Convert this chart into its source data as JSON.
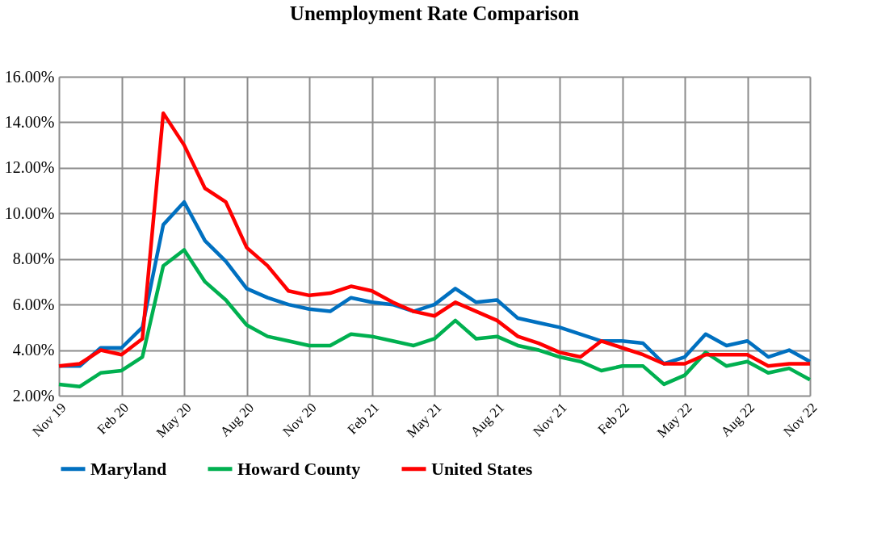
{
  "chart_data": {
    "type": "line",
    "title": "Unemployment Rate Comparison",
    "categories": [
      "Nov 19",
      null,
      null,
      "Feb 20",
      null,
      null,
      "May 20",
      null,
      null,
      "Aug 20",
      null,
      null,
      "Nov 20",
      null,
      null,
      "Feb 21",
      null,
      null,
      "May 21",
      null,
      null,
      "Aug 21",
      null,
      null,
      "Nov 21",
      null,
      null,
      "Feb 22",
      null,
      null,
      "May 22",
      null,
      null,
      "Aug 22",
      null,
      null,
      "Nov 22"
    ],
    "series": [
      {
        "name": "Maryland",
        "color": "#0070c0",
        "values": [
          3.3,
          3.3,
          4.1,
          4.1,
          5.0,
          9.5,
          10.5,
          8.8,
          7.9,
          6.7,
          6.3,
          6.0,
          5.8,
          5.7,
          6.3,
          6.1,
          6.0,
          5.7,
          6.0,
          6.7,
          6.1,
          6.2,
          5.4,
          5.2,
          5.0,
          4.7,
          4.4,
          4.4,
          4.3,
          3.4,
          3.7,
          4.7,
          4.2,
          4.4,
          3.7,
          4.0,
          3.5
        ]
      },
      {
        "name": "Howard County",
        "color": "#00b050",
        "values": [
          2.5,
          2.4,
          3.0,
          3.1,
          3.7,
          7.7,
          8.4,
          7.0,
          6.2,
          5.1,
          4.6,
          4.4,
          4.2,
          4.2,
          4.7,
          4.6,
          4.4,
          4.2,
          4.5,
          5.3,
          4.5,
          4.6,
          4.2,
          4.0,
          3.7,
          3.5,
          3.1,
          3.3,
          3.3,
          2.5,
          2.9,
          3.9,
          3.3,
          3.5,
          3.0,
          3.2,
          2.7
        ]
      },
      {
        "name": "United States",
        "color": "#ff0000",
        "values": [
          3.3,
          3.4,
          4.0,
          3.8,
          4.5,
          14.4,
          13.0,
          11.1,
          10.5,
          8.5,
          7.7,
          6.6,
          6.4,
          6.5,
          6.8,
          6.6,
          6.1,
          5.7,
          5.5,
          6.1,
          5.7,
          5.3,
          4.6,
          4.3,
          3.9,
          3.7,
          4.4,
          4.1,
          3.8,
          3.4,
          3.4,
          3.8,
          3.8,
          3.8,
          3.3,
          3.4,
          3.4
        ]
      }
    ],
    "ylim": [
      2,
      16
    ],
    "yticks": [
      {
        "value": 2,
        "label": "2.00%"
      },
      {
        "value": 4,
        "label": "4.00%"
      },
      {
        "value": 6,
        "label": "6.00%"
      },
      {
        "value": 8,
        "label": "8.00%"
      },
      {
        "value": 10,
        "label": "10.00%"
      },
      {
        "value": 12,
        "label": "12.00%"
      },
      {
        "value": 14,
        "label": "14.00%"
      },
      {
        "value": 16,
        "label": "16.00%"
      }
    ],
    "grid": true,
    "legend": "bottom",
    "marker": "none",
    "line_style": "solid"
  }
}
